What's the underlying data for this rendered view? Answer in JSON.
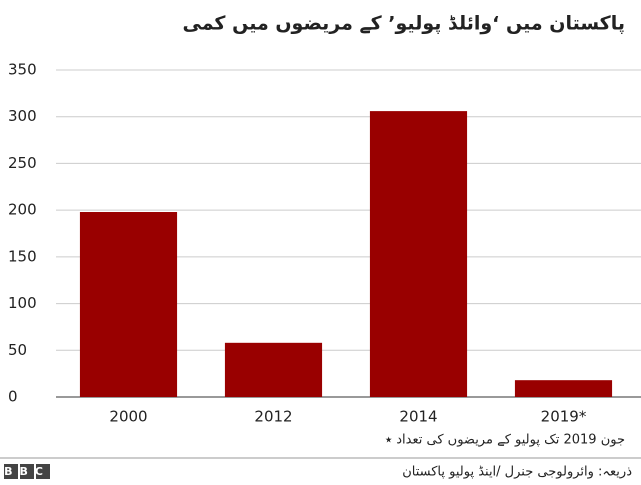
{
  "chart_data": {
    "type": "bar",
    "title": "پاکستان میں ‘وائلڈ پولیو’ کے مریضوں میں کمی",
    "categories": [
      "2000",
      "2012",
      "2014",
      "2019*"
    ],
    "values": [
      198,
      58,
      306,
      18
    ],
    "color": "#990000",
    "ylim": [
      0,
      350
    ],
    "yticks": [
      0,
      50,
      100,
      150,
      200,
      250,
      300,
      350
    ],
    "grid": true,
    "footnote": "⭑ جون 2019 تک پولیو کے مریضوں کی تعداد",
    "source": "ذریعہ: وائرولوجی جنرل /اینڈ پولیو پاکستان",
    "logo": "BBC"
  }
}
